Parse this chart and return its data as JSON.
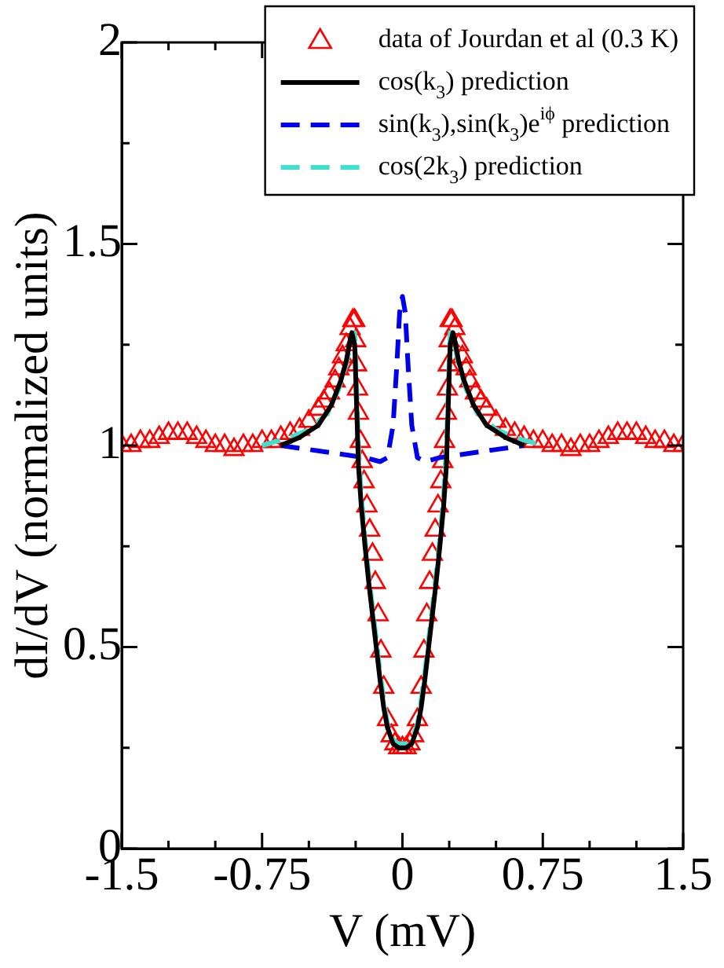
{
  "chart_data": {
    "type": "line",
    "xlabel": "V (mV)",
    "ylabel": "dI/dV (normalized units)",
    "xlim": [
      -1.5,
      1.5
    ],
    "ylim": [
      0,
      2
    ],
    "xticks": [
      -1.5,
      {
        "value": -1.25,
        "label": null
      },
      {
        "value": -1,
        "label": null
      },
      -0.75,
      {
        "value": -0.5,
        "label": null
      },
      {
        "value": -0.25,
        "label": null
      },
      0,
      {
        "value": 0.25,
        "label": null
      },
      {
        "value": 0.5,
        "label": null
      },
      0.75,
      {
        "value": 1,
        "label": null
      },
      {
        "value": 1.25,
        "label": null
      },
      1.5
    ],
    "yticks": [
      0,
      {
        "value": 0.25,
        "label": null
      },
      0.5,
      {
        "value": 0.75,
        "label": null
      },
      1,
      {
        "value": 1.25,
        "label": null
      },
      1.5,
      {
        "value": 1.75,
        "label": null
      },
      2
    ],
    "legend": "top right",
    "grid": false,
    "series": [
      {
        "name": "data of Jourdan et al (0.3 K)",
        "type": "scatter",
        "marker": "triangle",
        "color": "#ff0000",
        "x": [
          -1.5,
          -1.45,
          -1.4,
          -1.35,
          -1.3,
          -1.25,
          -1.2,
          -1.15,
          -1.1,
          -1.05,
          -1,
          -0.95,
          -0.9,
          -0.85,
          -0.8,
          -0.75,
          -0.7,
          -0.65,
          -0.6,
          -0.55,
          -0.5,
          -0.45,
          -0.42,
          -0.39,
          -0.36,
          -0.34,
          -0.32,
          -0.3,
          -0.28,
          -0.265,
          -0.255,
          -0.25,
          -0.245,
          -0.24,
          -0.235,
          -0.225,
          -0.215,
          -0.205,
          -0.19,
          -0.175,
          -0.16,
          -0.145,
          -0.13,
          -0.115,
          -0.1,
          -0.08,
          -0.06,
          -0.04,
          -0.02,
          0,
          0.02,
          0.04,
          0.06,
          0.08,
          0.1,
          0.115,
          0.13,
          0.145,
          0.16,
          0.175,
          0.19,
          0.205,
          0.215,
          0.225,
          0.235,
          0.24,
          0.245,
          0.25,
          0.255,
          0.265,
          0.28,
          0.3,
          0.32,
          0.34,
          0.36,
          0.39,
          0.42,
          0.45,
          0.5,
          0.55,
          0.6,
          0.65,
          0.7,
          0.75,
          0.8,
          0.85,
          0.9,
          0.95,
          1,
          1.05,
          1.1,
          1.15,
          1.2,
          1.25,
          1.3,
          1.35,
          1.4,
          1.45,
          1.5
        ],
        "values": [
          1,
          1,
          1.01,
          1.01,
          1.02,
          1.03,
          1.03,
          1.03,
          1.02,
          1.01,
          1,
          1,
          0.99,
          1,
          1,
          1.01,
          1.01,
          1.02,
          1.03,
          1.04,
          1.06,
          1.09,
          1.11,
          1.13,
          1.16,
          1.19,
          1.22,
          1.25,
          1.29,
          1.31,
          1.31,
          1.26,
          1.2,
          1.14,
          1.08,
          1.01,
          0.96,
          0.91,
          0.85,
          0.79,
          0.73,
          0.66,
          0.58,
          0.49,
          0.4,
          0.32,
          0.28,
          0.26,
          0.25,
          0.25,
          0.25,
          0.26,
          0.28,
          0.32,
          0.4,
          0.49,
          0.58,
          0.66,
          0.73,
          0.79,
          0.85,
          0.91,
          0.96,
          1.01,
          1.08,
          1.14,
          1.2,
          1.26,
          1.31,
          1.31,
          1.29,
          1.25,
          1.22,
          1.19,
          1.16,
          1.13,
          1.11,
          1.09,
          1.06,
          1.04,
          1.03,
          1.02,
          1.01,
          1.01,
          1,
          1,
          0.99,
          1,
          1,
          1.01,
          1.02,
          1.03,
          1.03,
          1.03,
          1.02,
          1.01,
          1.01,
          1,
          1
        ]
      },
      {
        "name": "cos(k$_{3}$) prediction",
        "type": "line",
        "marker": "none",
        "line_style": "solid",
        "color": "#000000",
        "x": [
          -0.65,
          -0.55,
          -0.45,
          -0.38,
          -0.33,
          -0.3,
          -0.28,
          -0.27,
          -0.255,
          -0.245,
          -0.235,
          -0.22,
          -0.2,
          -0.18,
          -0.16,
          -0.14,
          -0.12,
          -0.1,
          -0.08,
          -0.05,
          -0.02,
          0,
          0.02,
          0.05,
          0.08,
          0.1,
          0.12,
          0.14,
          0.16,
          0.18,
          0.2,
          0.22,
          0.235,
          0.245,
          0.255,
          0.27,
          0.28,
          0.3,
          0.33,
          0.38,
          0.45,
          0.55,
          0.65
        ],
        "values": [
          1,
          1.02,
          1.05,
          1.1,
          1.16,
          1.21,
          1.26,
          1.28,
          1.25,
          1.1,
          0.95,
          0.85,
          0.75,
          0.66,
          0.58,
          0.5,
          0.42,
          0.35,
          0.3,
          0.26,
          0.25,
          0.25,
          0.25,
          0.26,
          0.3,
          0.35,
          0.42,
          0.5,
          0.58,
          0.66,
          0.75,
          0.85,
          0.95,
          1.1,
          1.25,
          1.28,
          1.26,
          1.21,
          1.16,
          1.1,
          1.05,
          1.02,
          1
        ]
      },
      {
        "name": "sin(k$_{3}$),sin(k$_{3}$)e$^{iϕ}$ prediction",
        "type": "line",
        "marker": "none",
        "line_style": "dashed",
        "color": "#0000ee",
        "x": [
          -0.65,
          -0.5,
          -0.35,
          -0.2,
          -0.12,
          -0.08,
          -0.05,
          -0.03,
          -0.015,
          0,
          0.015,
          0.03,
          0.05,
          0.08,
          0.12,
          0.2,
          0.35,
          0.5,
          0.65
        ],
        "values": [
          1,
          0.99,
          0.98,
          0.97,
          0.96,
          0.97,
          1.05,
          1.2,
          1.33,
          1.37,
          1.33,
          1.2,
          1.05,
          0.97,
          0.96,
          0.97,
          0.98,
          0.99,
          1
        ]
      },
      {
        "name": "cos(2k$_{3}$) prediction",
        "type": "line",
        "marker": "none",
        "line_style": "dashed",
        "color": "#40e0d0",
        "x": [
          -0.75,
          -0.6,
          -0.5,
          -0.4,
          -0.34,
          -0.3,
          -0.27,
          -0.255,
          -0.245,
          -0.235,
          -0.22,
          -0.2,
          -0.18,
          -0.16,
          -0.14,
          -0.12,
          -0.1,
          -0.08,
          -0.05,
          -0.02,
          0,
          0.02,
          0.05,
          0.08,
          0.1,
          0.12,
          0.14,
          0.16,
          0.18,
          0.2,
          0.22,
          0.235,
          0.245,
          0.255,
          0.27,
          0.3,
          0.34,
          0.4,
          0.5,
          0.6,
          0.75
        ],
        "values": [
          1,
          1.02,
          1.04,
          1.08,
          1.14,
          1.2,
          1.27,
          1.28,
          1.15,
          1,
          0.88,
          0.77,
          0.68,
          0.6,
          0.52,
          0.44,
          0.37,
          0.31,
          0.27,
          0.26,
          0.26,
          0.26,
          0.27,
          0.31,
          0.37,
          0.44,
          0.52,
          0.6,
          0.68,
          0.77,
          0.88,
          1,
          1.15,
          1.28,
          1.27,
          1.2,
          1.14,
          1.08,
          1.04,
          1.02,
          1
        ]
      }
    ]
  }
}
